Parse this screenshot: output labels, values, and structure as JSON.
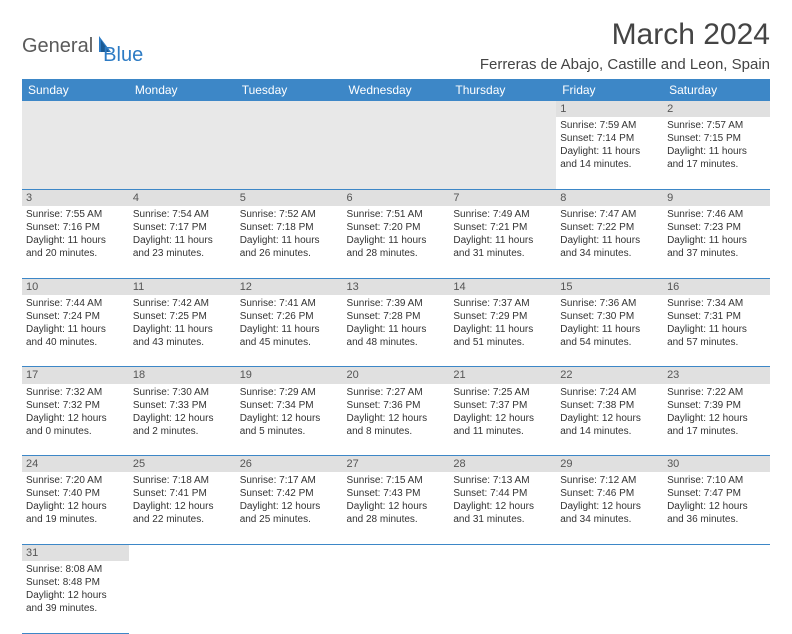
{
  "logo": {
    "text1": "General",
    "text2": "Blue"
  },
  "title": "March 2024",
  "location": "Ferreras de Abajo, Castille and Leon, Spain",
  "weekdays": [
    "Sunday",
    "Monday",
    "Tuesday",
    "Wednesday",
    "Thursday",
    "Friday",
    "Saturday"
  ],
  "colors": {
    "header_bg": "#3d87c7",
    "daynum_bg": "#e0e0e0",
    "text": "#333333",
    "accent": "#2d7bc4"
  },
  "weeks": [
    [
      null,
      null,
      null,
      null,
      null,
      {
        "d": "1",
        "sr": "7:59 AM",
        "ss": "7:14 PM",
        "dl": "11 hours and 14 minutes."
      },
      {
        "d": "2",
        "sr": "7:57 AM",
        "ss": "7:15 PM",
        "dl": "11 hours and 17 minutes."
      }
    ],
    [
      {
        "d": "3",
        "sr": "7:55 AM",
        "ss": "7:16 PM",
        "dl": "11 hours and 20 minutes."
      },
      {
        "d": "4",
        "sr": "7:54 AM",
        "ss": "7:17 PM",
        "dl": "11 hours and 23 minutes."
      },
      {
        "d": "5",
        "sr": "7:52 AM",
        "ss": "7:18 PM",
        "dl": "11 hours and 26 minutes."
      },
      {
        "d": "6",
        "sr": "7:51 AM",
        "ss": "7:20 PM",
        "dl": "11 hours and 28 minutes."
      },
      {
        "d": "7",
        "sr": "7:49 AM",
        "ss": "7:21 PM",
        "dl": "11 hours and 31 minutes."
      },
      {
        "d": "8",
        "sr": "7:47 AM",
        "ss": "7:22 PM",
        "dl": "11 hours and 34 minutes."
      },
      {
        "d": "9",
        "sr": "7:46 AM",
        "ss": "7:23 PM",
        "dl": "11 hours and 37 minutes."
      }
    ],
    [
      {
        "d": "10",
        "sr": "7:44 AM",
        "ss": "7:24 PM",
        "dl": "11 hours and 40 minutes."
      },
      {
        "d": "11",
        "sr": "7:42 AM",
        "ss": "7:25 PM",
        "dl": "11 hours and 43 minutes."
      },
      {
        "d": "12",
        "sr": "7:41 AM",
        "ss": "7:26 PM",
        "dl": "11 hours and 45 minutes."
      },
      {
        "d": "13",
        "sr": "7:39 AM",
        "ss": "7:28 PM",
        "dl": "11 hours and 48 minutes."
      },
      {
        "d": "14",
        "sr": "7:37 AM",
        "ss": "7:29 PM",
        "dl": "11 hours and 51 minutes."
      },
      {
        "d": "15",
        "sr": "7:36 AM",
        "ss": "7:30 PM",
        "dl": "11 hours and 54 minutes."
      },
      {
        "d": "16",
        "sr": "7:34 AM",
        "ss": "7:31 PM",
        "dl": "11 hours and 57 minutes."
      }
    ],
    [
      {
        "d": "17",
        "sr": "7:32 AM",
        "ss": "7:32 PM",
        "dl": "12 hours and 0 minutes."
      },
      {
        "d": "18",
        "sr": "7:30 AM",
        "ss": "7:33 PM",
        "dl": "12 hours and 2 minutes."
      },
      {
        "d": "19",
        "sr": "7:29 AM",
        "ss": "7:34 PM",
        "dl": "12 hours and 5 minutes."
      },
      {
        "d": "20",
        "sr": "7:27 AM",
        "ss": "7:36 PM",
        "dl": "12 hours and 8 minutes."
      },
      {
        "d": "21",
        "sr": "7:25 AM",
        "ss": "7:37 PM",
        "dl": "12 hours and 11 minutes."
      },
      {
        "d": "22",
        "sr": "7:24 AM",
        "ss": "7:38 PM",
        "dl": "12 hours and 14 minutes."
      },
      {
        "d": "23",
        "sr": "7:22 AM",
        "ss": "7:39 PM",
        "dl": "12 hours and 17 minutes."
      }
    ],
    [
      {
        "d": "24",
        "sr": "7:20 AM",
        "ss": "7:40 PM",
        "dl": "12 hours and 19 minutes."
      },
      {
        "d": "25",
        "sr": "7:18 AM",
        "ss": "7:41 PM",
        "dl": "12 hours and 22 minutes."
      },
      {
        "d": "26",
        "sr": "7:17 AM",
        "ss": "7:42 PM",
        "dl": "12 hours and 25 minutes."
      },
      {
        "d": "27",
        "sr": "7:15 AM",
        "ss": "7:43 PM",
        "dl": "12 hours and 28 minutes."
      },
      {
        "d": "28",
        "sr": "7:13 AM",
        "ss": "7:44 PM",
        "dl": "12 hours and 31 minutes."
      },
      {
        "d": "29",
        "sr": "7:12 AM",
        "ss": "7:46 PM",
        "dl": "12 hours and 34 minutes."
      },
      {
        "d": "30",
        "sr": "7:10 AM",
        "ss": "7:47 PM",
        "dl": "12 hours and 36 minutes."
      }
    ],
    [
      {
        "d": "31",
        "sr": "8:08 AM",
        "ss": "8:48 PM",
        "dl": "12 hours and 39 minutes."
      },
      null,
      null,
      null,
      null,
      null,
      null
    ]
  ],
  "labels": {
    "sunrise": "Sunrise:",
    "sunset": "Sunset:",
    "daylight": "Daylight:"
  }
}
